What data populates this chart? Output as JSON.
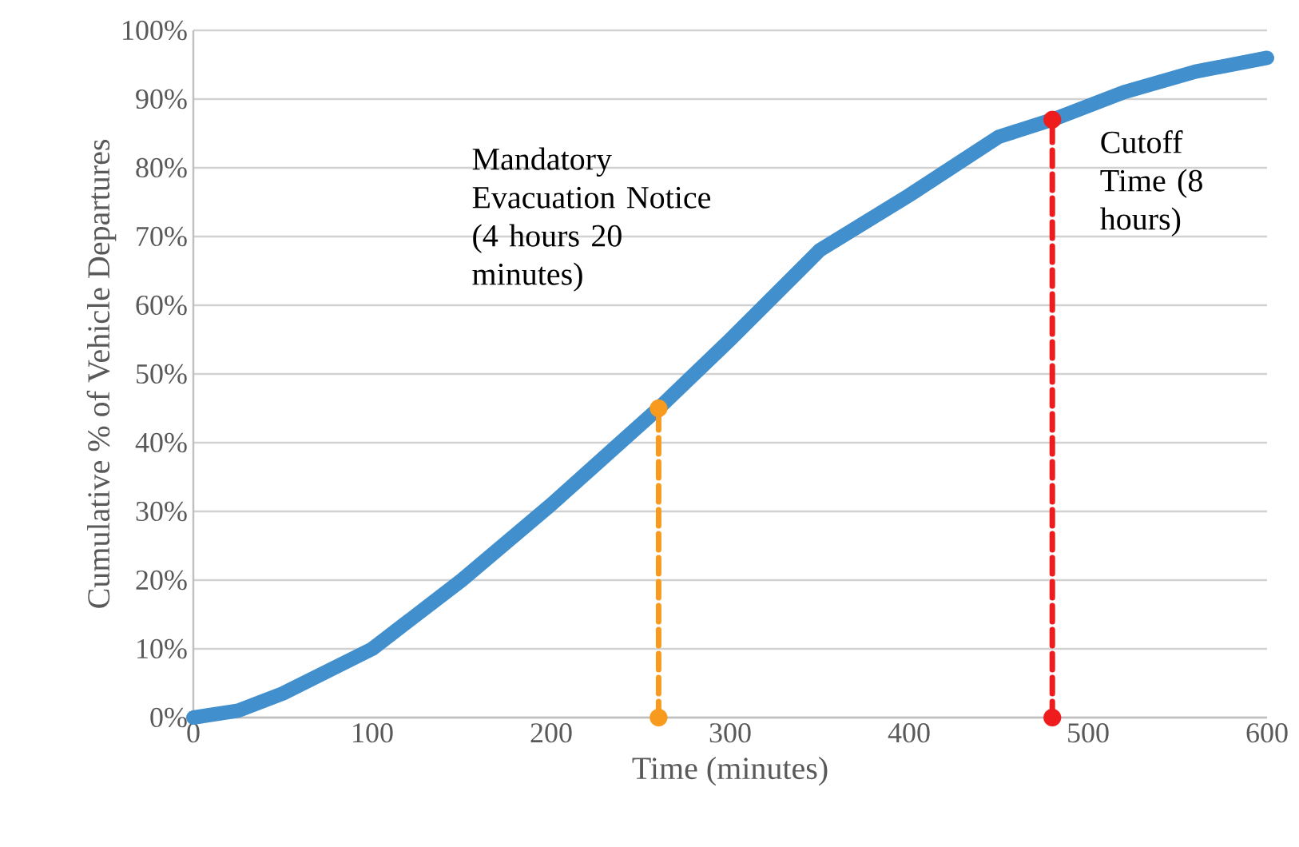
{
  "chart_data": {
    "type": "line",
    "xlabel": "Time (minutes)",
    "ylabel": "Cumulative % of Vehicle Departures",
    "xlim": [
      0,
      600
    ],
    "xticks": [
      0,
      100,
      200,
      300,
      400,
      500,
      600
    ],
    "ylim": [
      0,
      100
    ],
    "yticks": [
      {
        "value": 0,
        "label": "0%"
      },
      {
        "value": 10,
        "label": "10%"
      },
      {
        "value": 20,
        "label": "20%"
      },
      {
        "value": 30,
        "label": "30%"
      },
      {
        "value": 40,
        "label": "40%"
      },
      {
        "value": 50,
        "label": "50%"
      },
      {
        "value": 60,
        "label": "60%"
      },
      {
        "value": 70,
        "label": "70%"
      },
      {
        "value": 80,
        "label": "80%"
      },
      {
        "value": 90,
        "label": "90%"
      },
      {
        "value": 100,
        "label": "100%"
      }
    ],
    "grid": "y",
    "marker": "none",
    "line_style": "solid",
    "series": [
      {
        "color": "#418fcd",
        "x": [
          0,
          25,
          50,
          100,
          150,
          200,
          260,
          300,
          350,
          400,
          450,
          480,
          520,
          560,
          600
        ],
        "values": [
          0,
          1,
          3.5,
          10,
          20,
          31,
          45,
          55,
          68,
          76,
          84.5,
          87,
          91,
          94,
          96
        ]
      },
      {
        "color": "#f79a1e",
        "marker": "circle",
        "line_style": "dashed",
        "x": [
          260,
          260
        ],
        "values": [
          0,
          45
        ]
      },
      {
        "color": "#ee1c1c",
        "marker": "circle",
        "line_style": "dashed",
        "x": [
          480,
          480
        ],
        "values": [
          0,
          87
        ]
      }
    ],
    "annotations": [
      "Mandatory Evacuation Notice (4 hours 20 minutes)",
      "Cutoff Time (8 hours)"
    ]
  }
}
